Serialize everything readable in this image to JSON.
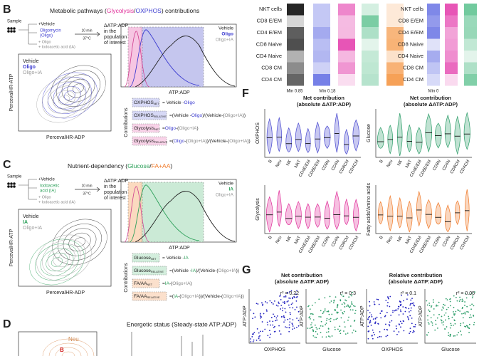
{
  "panel_b": {
    "label": "B",
    "title": [
      "Metabolic pathways (",
      "Glycolysis",
      "/",
      "OXPHOS",
      ") contributions"
    ],
    "title_colors": [
      "#222222",
      "#e0309a",
      "#222222",
      "#3b3bd0",
      "#222222"
    ],
    "schematic": {
      "sample": "Sample",
      "vehicle": "+Vehicle",
      "drug": [
        "Oligomycin",
        "(Oligo)"
      ],
      "controls": [
        "+ Oligo",
        "+ Iodoacetic acid (IA)"
      ],
      "time": "10 min",
      "temp": "37°C",
      "readout": [
        "ΔATP:ADP",
        "in the",
        "population",
        "of interest"
      ]
    },
    "contour": {
      "legend": [
        "Vehicle",
        "Oligo",
        "Oligo+IA"
      ],
      "y_label": "PercevalHR-ATP",
      "x_label": "PercevalHR-ADP"
    },
    "histogram": {
      "legend": [
        "Vehicle",
        "Oligo",
        "Oligo+IA"
      ],
      "x_label": "ATP:ADP"
    },
    "equations_label": "Contributions",
    "equations": [
      {
        "name": "OXPHOS",
        "sub": "NET",
        "box_color": "#d6d8f5",
        "rhs": [
          "= Vehicle -",
          "Oligo"
        ],
        "colors": [
          "#222222",
          "#3b3bd0"
        ]
      },
      {
        "name": "OXPHOS",
        "sub": "RELATIVE",
        "box_color": "#d6d8f5",
        "rhs": [
          "=(Vehicle -",
          "Oligo",
          ")/(Vehicle-(",
          "Oligo+IA",
          "))"
        ],
        "colors": [
          "#222222",
          "#3b3bd0",
          "#222222",
          "#888888",
          "#222222"
        ]
      },
      {
        "name": "Glycolysis",
        "sub": "NET",
        "box_color": "#f8d3e8",
        "rhs": [
          "=",
          "Oligo",
          "-(",
          "Oligo+IA",
          ")"
        ],
        "colors": [
          "#222222",
          "#3b3bd0",
          "#222222",
          "#888888",
          "#222222"
        ]
      },
      {
        "name": "Glycolysis",
        "sub": "RELATIVE",
        "box_color": "#f8d3e8",
        "rhs": [
          "=(",
          "Oligo",
          "-(",
          "Oligo+IA",
          "))/(Vehicle-(",
          "Oligo+IA",
          "))"
        ],
        "colors": [
          "#222222",
          "#3b3bd0",
          "#222222",
          "#888888",
          "#222222",
          "#888888",
          "#222222"
        ]
      }
    ]
  },
  "panel_c": {
    "label": "C",
    "title": [
      "Nutrient-dependency (",
      "Glucose",
      "/",
      "FA+AA",
      ")"
    ],
    "title_colors": [
      "#222222",
      "#2da05a",
      "#222222",
      "#f07a2a",
      "#222222"
    ],
    "schematic": {
      "sample": "Sample",
      "vehicle": "+Vehicle",
      "drug": [
        "Iodoacetic",
        "acid (IA)"
      ],
      "controls": [
        "+ Oligo",
        "+ Iodoacetic acid (IA)"
      ],
      "time": "10 min",
      "temp": "37°C",
      "readout": [
        "ΔATP:ADP",
        "in the",
        "population",
        "of interest"
      ]
    },
    "contour": {
      "legend": [
        "Vehicle",
        "IA",
        "Oligo+IA"
      ],
      "y_label": "PercevalHR-ATP",
      "x_label": "PercevalHR-ADP"
    },
    "histogram": {
      "legend": [
        "Vehicle",
        "IA",
        "Oligo+IA"
      ],
      "x_label": "ATP:ADP"
    },
    "equations_label": "Contributions",
    "equations": [
      {
        "name": "Glucose",
        "sub": "NET",
        "box_color": "#d3eedd",
        "rhs": [
          "= Vehicle -",
          "IA"
        ],
        "colors": [
          "#222222",
          "#2da05a"
        ]
      },
      {
        "name": "Glucose",
        "sub": "RELATIVE",
        "box_color": "#d3eedd",
        "rhs": [
          "=(Vehicle -",
          "IA",
          ")/(Vehicle-(",
          "Oligo+IA",
          "))"
        ],
        "colors": [
          "#222222",
          "#2da05a",
          "#222222",
          "#888888",
          "#222222"
        ]
      },
      {
        "name": "FA/AA",
        "sub": "NET",
        "box_color": "#fbe0cc",
        "rhs": [
          "=",
          "IA",
          "-(",
          "Oligo+IA",
          ")"
        ],
        "colors": [
          "#222222",
          "#2da05a",
          "#222222",
          "#888888",
          "#222222"
        ]
      },
      {
        "name": "FA/AA",
        "sub": "RELATIVE",
        "box_color": "#fbe0cc",
        "rhs": [
          "=(",
          "IA",
          "-(",
          "Oligo+IA",
          "))/(Vehicle-(",
          "Oligo+IA",
          "))"
        ],
        "colors": [
          "#222222",
          "#2da05a",
          "#222222",
          "#888888",
          "#222222",
          "#888888",
          "#222222"
        ]
      }
    ]
  },
  "panel_d": {
    "label": "D",
    "title": "Energetic status (Steady-state ATP:ADP)",
    "populations": [
      "Neu",
      "B"
    ]
  },
  "heatmaps": {
    "rows": [
      "NKT cells",
      "CD8 E/EM",
      "CD4 E/EM",
      "CD8 Naive",
      "CD4 Naive",
      "CD8 CM",
      "CD4 CM"
    ],
    "min_labels": [
      "Min 0.85",
      "Min 0.18",
      "Min 0"
    ]
  },
  "panel_f": {
    "label": "F",
    "titles": [
      [
        "Net contribution",
        "(absolute ΔATP:ADP)"
      ],
      [
        "Net contribution",
        "(absolute ΔATP:ADP)"
      ]
    ],
    "categories": [
      "B",
      "Neu",
      "NK",
      "NKT",
      "CD4E/EM",
      "CD8E/EM",
      "CD8N",
      "CD4N",
      "CD8CM",
      "CD4CM"
    ],
    "plots": [
      {
        "y_label": "OXPHOS",
        "color": "#4a4ad0"
      },
      {
        "y_label": "Glucose",
        "color": "#2e9e6a"
      },
      {
        "y_label": "Glycolysis",
        "color": "#e0309a"
      },
      {
        "y_label": "Fatty acids/Amino acids",
        "color": "#f07a2a"
      }
    ]
  },
  "panel_g": {
    "label": "G",
    "titles": [
      [
        "Net contribution",
        "(absolute ΔATP:ADP)"
      ],
      [
        "Relative contribution",
        "(absolute ΔATP:ADP)"
      ]
    ],
    "plots": [
      {
        "x_label": "OXPHOS",
        "y_label": "ATP:ADP",
        "r2": "r² = 0.22",
        "color": "#2222c0"
      },
      {
        "x_label": "Glucose",
        "y_label": "ATP:ADP",
        "r2": "r² = 0.3",
        "color": "#2e9e6a"
      },
      {
        "x_label": "OXPHOS",
        "y_label": "ATP:ADP",
        "r2": "r² = 0.1",
        "color": "#2222c0"
      },
      {
        "x_label": "Glucose",
        "y_label": "ATP:ADP",
        "r2": "r² = 0.05",
        "color": "#2e9e6a"
      }
    ]
  }
}
